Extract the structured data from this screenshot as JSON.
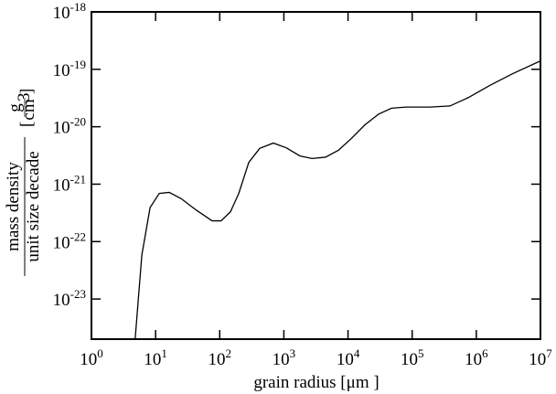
{
  "chart_data": {
    "type": "line",
    "xscale": "log",
    "yscale": "log",
    "xlabel": "grain radius [μm ]",
    "ylabel_numerator": "mass density",
    "ylabel_denominator": "unit size decade",
    "unit_numerator": "g",
    "unit_denominator": "cm",
    "unit_denominator_exponent": "3",
    "color": "#000000",
    "x": [
      4.8,
      6.1,
      8.2,
      11.4,
      16.3,
      25,
      43.6,
      76,
      105,
      147,
      198,
      284,
      420,
      685,
      1090,
      1780,
      2750,
      4450,
      7100,
      11200,
      18200,
      30000,
      47700,
      80000,
      190000,
      389000,
      745000,
      1600000,
      3600000,
      10000000
    ],
    "values": [
      2e-24,
      5.8e-23,
      3.9e-22,
      6.9e-22,
      7.2e-22,
      5.6e-22,
      3.5e-22,
      2.3e-22,
      2.3e-22,
      3.3e-22,
      6.9e-22,
      2.4e-21,
      4.2e-21,
      5.2e-21,
      4.3e-21,
      3.1e-21,
      2.8e-21,
      2.95e-21,
      3.9e-21,
      6.2e-21,
      1.07e-20,
      1.66e-20,
      2.1e-20,
      2.2e-20,
      2.2e-20,
      2.3e-20,
      3.2e-20,
      5.2e-20,
      8.3e-20,
      1.4e-19
    ],
    "xlim": [
      1,
      10000000
    ],
    "ylim": [
      2e-24,
      1e-18
    ],
    "xticks": [
      {
        "value": 1,
        "label": "10",
        "exponent": "0"
      },
      {
        "value": 10,
        "label": "10",
        "exponent": "1"
      },
      {
        "value": 100,
        "label": "10",
        "exponent": "2"
      },
      {
        "value": 1000,
        "label": "10",
        "exponent": "3"
      },
      {
        "value": 10000,
        "label": "10",
        "exponent": "4"
      },
      {
        "value": 100000,
        "label": "10",
        "exponent": "5"
      },
      {
        "value": 1000000,
        "label": "10",
        "exponent": "6"
      },
      {
        "value": 10000000,
        "label": "10",
        "exponent": "7"
      }
    ],
    "yticks": [
      {
        "value": 1e-23,
        "label": "10",
        "exponent": "-23"
      },
      {
        "value": 1e-22,
        "label": "10",
        "exponent": "-22"
      },
      {
        "value": 1e-21,
        "label": "10",
        "exponent": "-21"
      },
      {
        "value": 1e-20,
        "label": "10",
        "exponent": "-20"
      },
      {
        "value": 1e-19,
        "label": "10",
        "exponent": "-19"
      },
      {
        "value": 1e-18,
        "label": "10",
        "exponent": "-18"
      }
    ],
    "grid": false
  }
}
